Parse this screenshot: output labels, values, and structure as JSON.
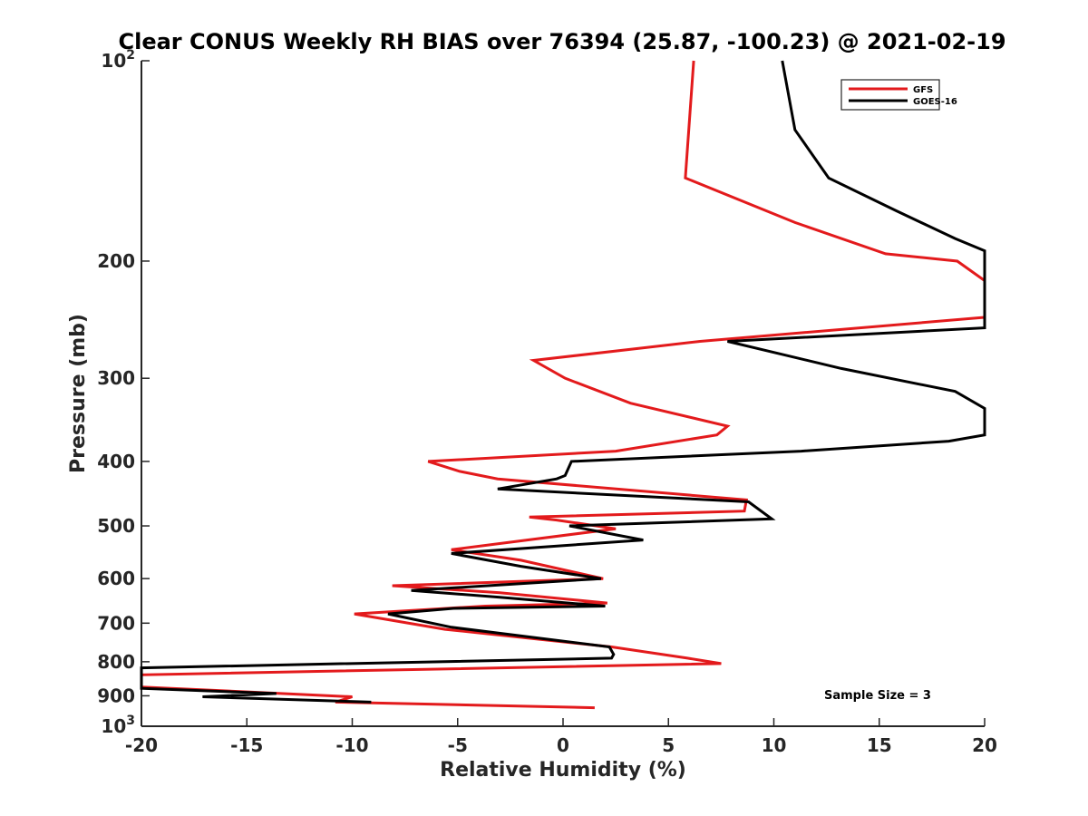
{
  "chart_data": {
    "type": "line",
    "title": "Clear CONUS Weekly RH BIAS over 76394 (25.87, -100.23) @ 2021-02-19",
    "xlabel": "Relative Humidity (%)",
    "ylabel": "Pressure (mb)",
    "xlim": [
      -20,
      20
    ],
    "ylim": [
      100,
      1000
    ],
    "y_scale": "log",
    "y_reversed": true,
    "grid": false,
    "legend_position": "top-right",
    "x_ticks": [
      -20,
      -15,
      -10,
      -5,
      0,
      5,
      10,
      15,
      20
    ],
    "x_tick_labels": [
      "-20",
      "-15",
      "-10",
      "-5",
      "0",
      "5",
      "10",
      "15",
      "20"
    ],
    "y_ticks": [
      100,
      200,
      300,
      400,
      500,
      600,
      700,
      800,
      900,
      1000
    ],
    "y_tick_labels": [
      {
        "base": "10",
        "exp": "2"
      },
      {
        "base": "200",
        "exp": ""
      },
      {
        "base": "300",
        "exp": ""
      },
      {
        "base": "400",
        "exp": ""
      },
      {
        "base": "500",
        "exp": ""
      },
      {
        "base": "600",
        "exp": ""
      },
      {
        "base": "700",
        "exp": ""
      },
      {
        "base": "800",
        "exp": ""
      },
      {
        "base": "900",
        "exp": ""
      },
      {
        "base": "10",
        "exp": "3"
      }
    ],
    "series": [
      {
        "name": "GFS",
        "color": "#e31a1c",
        "points": [
          [
            6.2,
            100
          ],
          [
            5.8,
            150
          ],
          [
            11.0,
            175
          ],
          [
            15.3,
            195
          ],
          [
            18.7,
            200
          ],
          [
            20.0,
            214
          ],
          [
            20.0,
            243
          ],
          [
            6.5,
            264
          ],
          [
            -1.4,
            282
          ],
          [
            0.1,
            300
          ],
          [
            3.2,
            327
          ],
          [
            7.8,
            354
          ],
          [
            7.3,
            365
          ],
          [
            2.5,
            386
          ],
          [
            -6.4,
            400
          ],
          [
            -4.9,
            414
          ],
          [
            -3.1,
            425
          ],
          [
            8.7,
            457
          ],
          [
            8.6,
            475
          ],
          [
            -1.6,
            485
          ],
          [
            -0.3,
            490
          ],
          [
            2.5,
            505
          ],
          [
            -5.3,
            543
          ],
          [
            -2.0,
            563
          ],
          [
            1.9,
            600
          ],
          [
            -8.1,
            615
          ],
          [
            -3.0,
            630
          ],
          [
            2.1,
            653
          ],
          [
            -3.7,
            660
          ],
          [
            -9.9,
            678
          ],
          [
            -5.6,
            715
          ],
          [
            2.3,
            760
          ],
          [
            5.9,
            790
          ],
          [
            7.5,
            805
          ],
          [
            -20.0,
            837
          ],
          [
            -20.0,
            873
          ],
          [
            -10.0,
            903
          ],
          [
            -10.8,
            920
          ],
          [
            1.5,
            938
          ]
        ]
      },
      {
        "name": "GOES-16",
        "color": "#000000",
        "points": [
          [
            10.4,
            100
          ],
          [
            11.0,
            127
          ],
          [
            12.6,
            150
          ],
          [
            15.8,
            168
          ],
          [
            18.6,
            185
          ],
          [
            20.0,
            193
          ],
          [
            20.0,
            252
          ],
          [
            7.8,
            264
          ],
          [
            13.2,
            290
          ],
          [
            18.6,
            314
          ],
          [
            20.0,
            333
          ],
          [
            20.0,
            365
          ],
          [
            18.3,
            373
          ],
          [
            11.3,
            386
          ],
          [
            0.4,
            400
          ],
          [
            0.1,
            420
          ],
          [
            -0.3,
            425
          ],
          [
            -3.1,
            440
          ],
          [
            8.8,
            460
          ],
          [
            9.9,
            488
          ],
          [
            0.3,
            500
          ],
          [
            3.8,
            525
          ],
          [
            -5.3,
            550
          ],
          [
            -2.0,
            575
          ],
          [
            1.8,
            600
          ],
          [
            -7.2,
            625
          ],
          [
            -3.0,
            640
          ],
          [
            2.0,
            660
          ],
          [
            -5.2,
            665
          ],
          [
            -8.3,
            678
          ],
          [
            -5.3,
            710
          ],
          [
            2.2,
            760
          ],
          [
            2.4,
            780
          ],
          [
            2.3,
            790
          ],
          [
            -20.0,
            817
          ],
          [
            -20.0,
            877
          ],
          [
            -13.6,
            893
          ],
          [
            -17.1,
            903
          ],
          [
            -9.1,
            920
          ]
        ]
      }
    ],
    "annotation": "Sample Size = 3"
  }
}
